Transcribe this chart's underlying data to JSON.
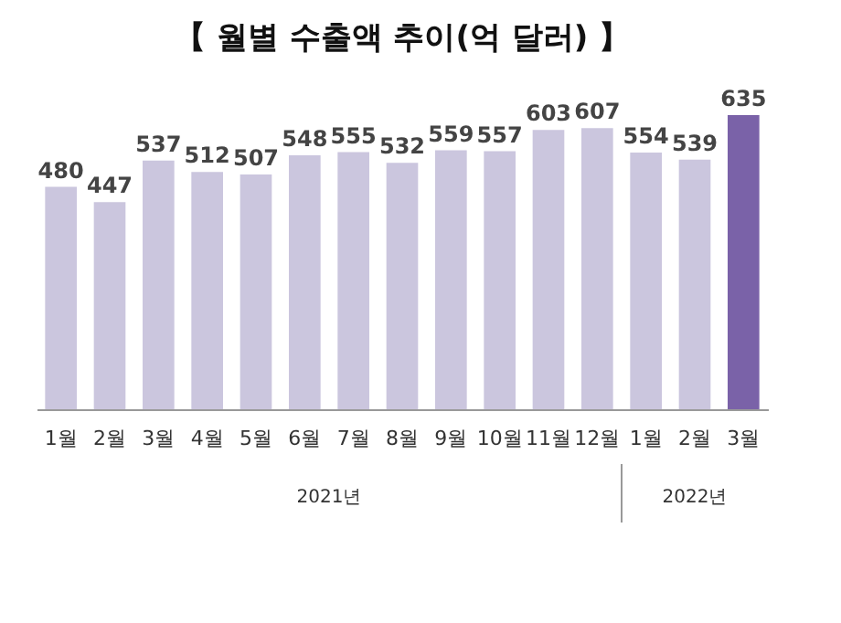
{
  "chart_data": {
    "type": "bar",
    "title": "【 월별 수출액 추이(억 달러) 】",
    "categories": [
      "1월",
      "2월",
      "3월",
      "4월",
      "5월",
      "6월",
      "7월",
      "8월",
      "9월",
      "10월",
      "11월",
      "12월",
      "1월",
      "2월",
      "3월"
    ],
    "values": [
      480,
      447,
      537,
      512,
      507,
      548,
      555,
      532,
      559,
      557,
      603,
      607,
      554,
      539,
      635
    ],
    "colors": [
      "#cbc6de",
      "#cbc6de",
      "#cbc6de",
      "#cbc6de",
      "#cbc6de",
      "#cbc6de",
      "#cbc6de",
      "#cbc6de",
      "#cbc6de",
      "#cbc6de",
      "#cbc6de",
      "#cbc6de",
      "#cbc6de",
      "#cbc6de",
      "#7a62a8"
    ],
    "data_labels": true,
    "grid": false,
    "annotations": [
      "2021년",
      "2022년"
    ]
  }
}
